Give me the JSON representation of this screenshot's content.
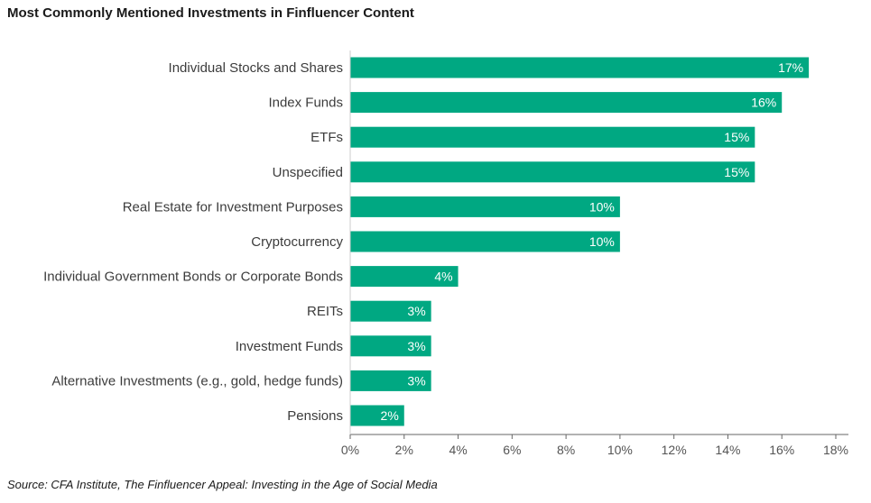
{
  "title": "Most Commonly Mentioned Investments in Finfluencer Content",
  "source": "Source: CFA Institute, The Finfluencer Appeal: Investing in the Age of Social Media",
  "colors": {
    "bar": "#00a882",
    "axis": "#666666"
  },
  "chart_data": {
    "type": "bar",
    "orientation": "horizontal",
    "title": "Most Commonly Mentioned Investments in Finfluencer Content",
    "categories": [
      "Individual Stocks and Shares",
      "Index Funds",
      "ETFs",
      "Unspecified",
      "Real Estate for Investment Purposes",
      "Cryptocurrency",
      "Individual Government Bonds or Corporate Bonds",
      "REITs",
      "Investment Funds",
      "Alternative Investments (e.g., gold, hedge funds)",
      "Pensions"
    ],
    "values": [
      17,
      16,
      15,
      15,
      10,
      10,
      4,
      3,
      3,
      3,
      2
    ],
    "data_labels": [
      "17%",
      "16%",
      "15%",
      "15%",
      "10%",
      "10%",
      "4%",
      "3%",
      "3%",
      "3%",
      "2%"
    ],
    "xlim": [
      0,
      18
    ],
    "xticks": [
      0,
      2,
      4,
      6,
      8,
      10,
      12,
      14,
      16,
      18
    ],
    "xtick_labels": [
      "0%",
      "2%",
      "4%",
      "6%",
      "8%",
      "10%",
      "12%",
      "14%",
      "16%",
      "18%"
    ],
    "xlabel": "",
    "ylabel": "",
    "grid": false,
    "legend": "none"
  }
}
